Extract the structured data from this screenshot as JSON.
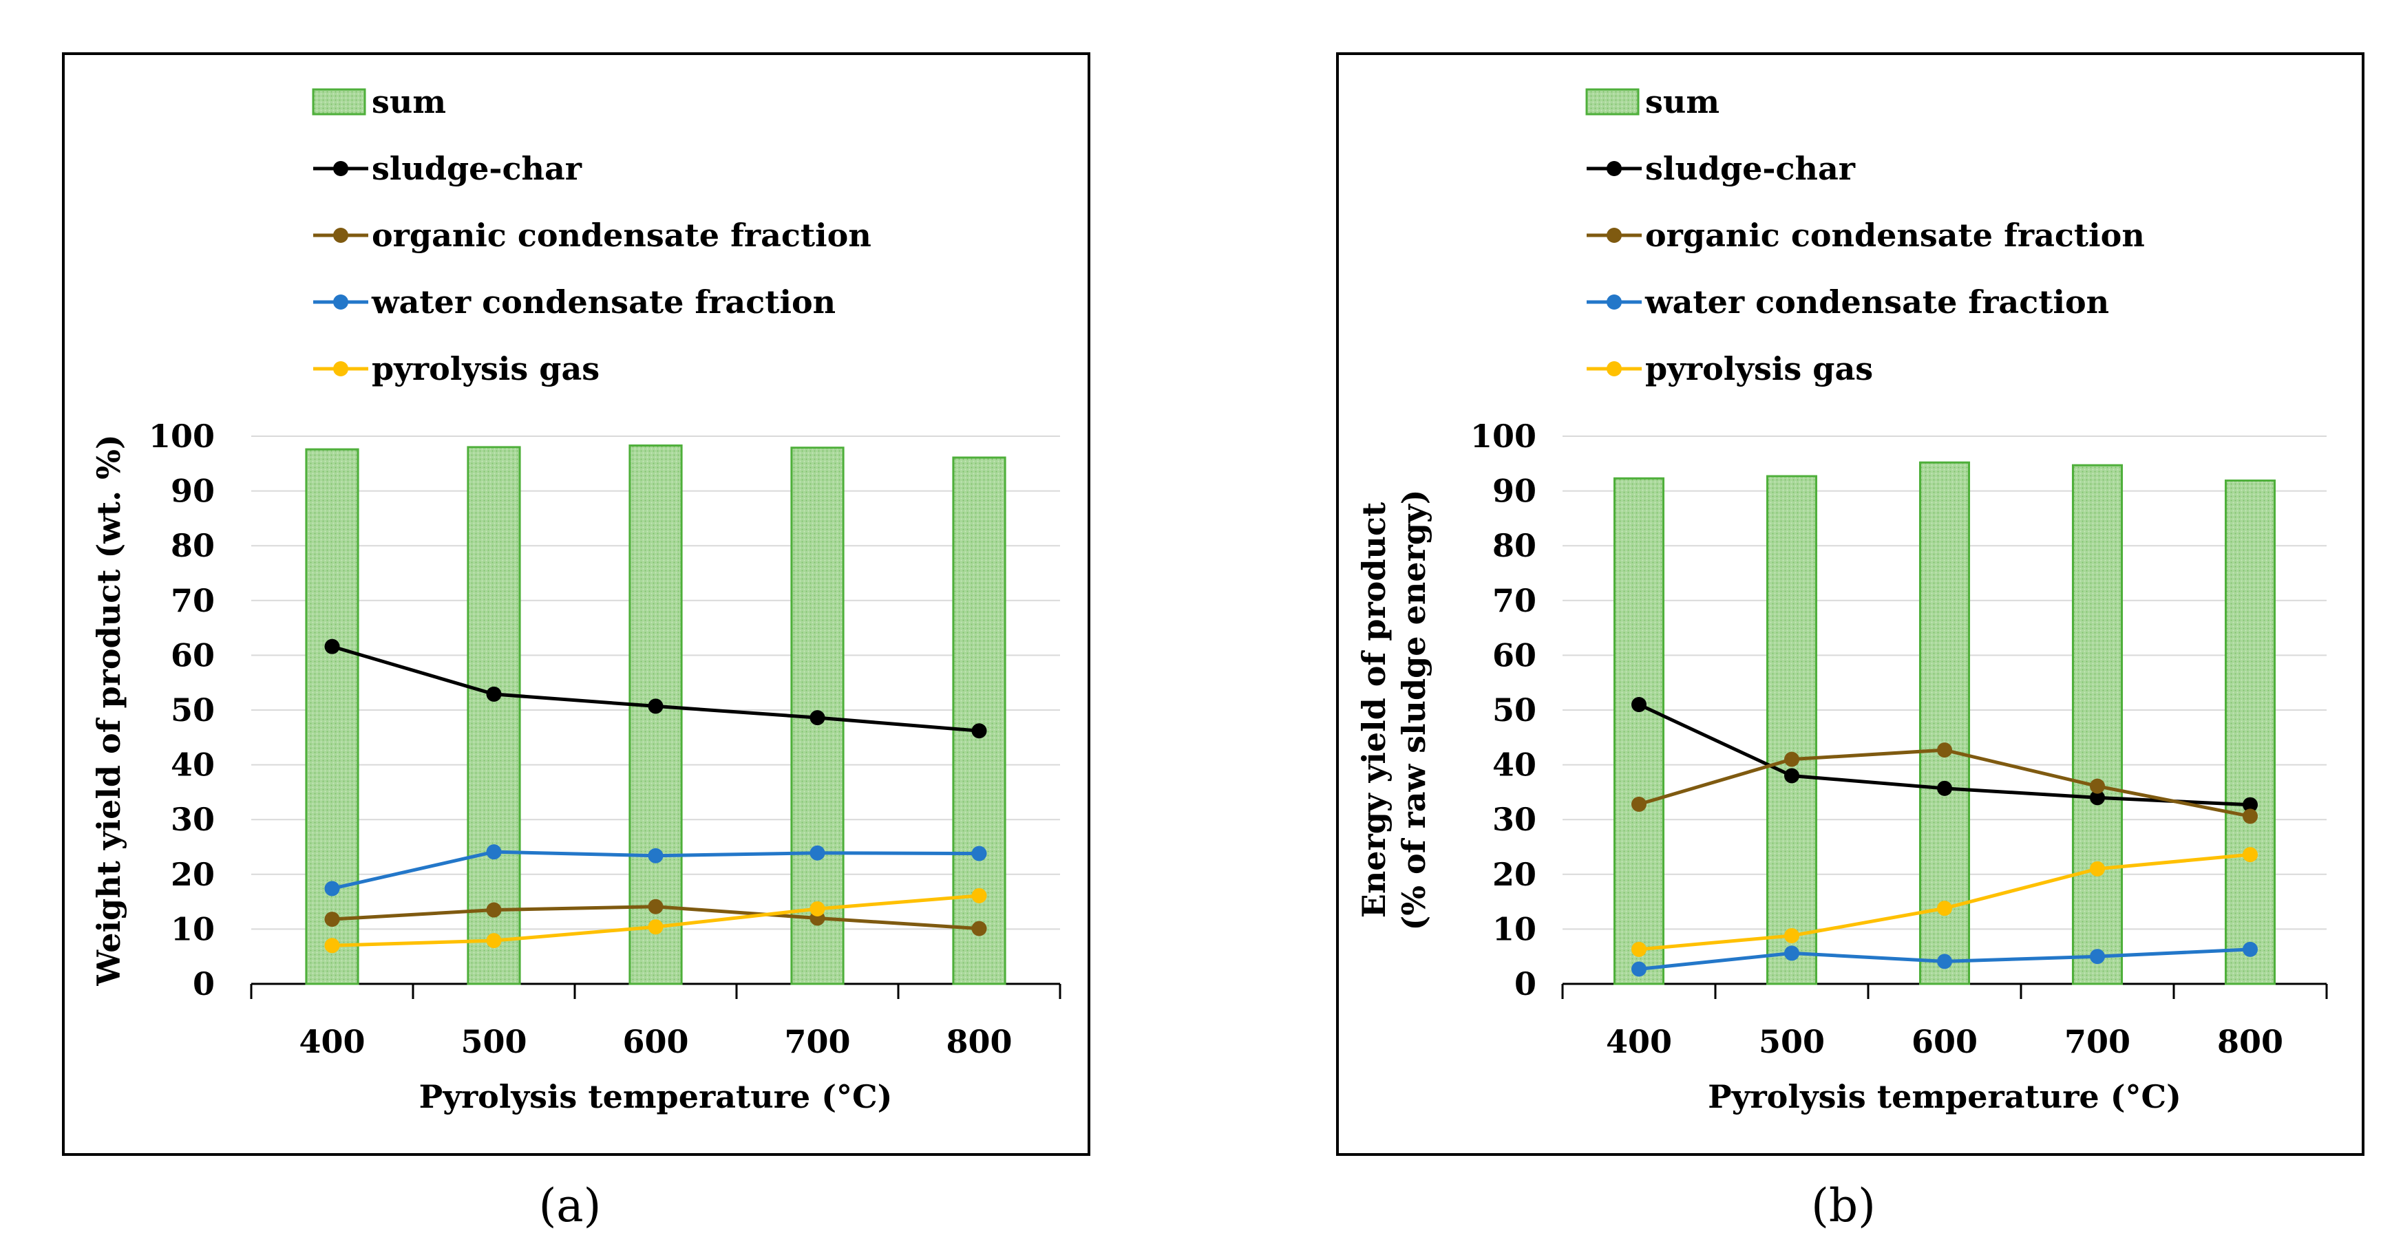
{
  "chart_data": [
    {
      "type": "bar+line",
      "panel_label": "a",
      "title": "",
      "xlabel": "Pyrolysis temperature (°C)",
      "ylabel": "Weight yield of product (wt. %)",
      "ylabel_lines": [
        "Weight yield of product (wt. %)"
      ],
      "ylim": [
        0,
        100
      ],
      "yticks": [
        0,
        10,
        20,
        30,
        40,
        50,
        60,
        70,
        80,
        90,
        100
      ],
      "categories": [
        "400",
        "500",
        "600",
        "700",
        "800"
      ],
      "grid": true,
      "legend_position": "top",
      "series": [
        {
          "name": "sum",
          "kind": "bar",
          "color": "#9ED08E",
          "edge": "#4EAF3A",
          "values": [
            97.6,
            98.0,
            98.3,
            97.9,
            96.1
          ]
        },
        {
          "name": "sludge-char",
          "kind": "line",
          "color": "#000000",
          "values": [
            61.6,
            52.9,
            50.7,
            48.6,
            46.2
          ]
        },
        {
          "name": "organic condensate fraction",
          "kind": "line",
          "color": "#7F5A10",
          "values": [
            11.8,
            13.5,
            14.1,
            12.0,
            10.1
          ]
        },
        {
          "name": "water condensate fraction",
          "kind": "line",
          "color": "#2377C9",
          "values": [
            17.4,
            24.1,
            23.4,
            23.9,
            23.8
          ]
        },
        {
          "name": "pyrolysis gas",
          "kind": "line",
          "color": "#FFC000",
          "values": [
            7.0,
            7.9,
            10.4,
            13.7,
            16.1
          ]
        }
      ]
    },
    {
      "type": "bar+line",
      "panel_label": "b",
      "title": "",
      "xlabel": "Pyrolysis temperature (°C)",
      "ylabel": "Energy yield of product (% of raw sludge energy)",
      "ylabel_lines": [
        "Energy yield of product",
        "(% of raw sludge energy)"
      ],
      "ylim": [
        0,
        100
      ],
      "yticks": [
        0,
        10,
        20,
        30,
        40,
        50,
        60,
        70,
        80,
        90,
        100
      ],
      "categories": [
        "400",
        "500",
        "600",
        "700",
        "800"
      ],
      "grid": true,
      "legend_position": "top",
      "series": [
        {
          "name": "sum",
          "kind": "bar",
          "color": "#9ED08E",
          "edge": "#4EAF3A",
          "values": [
            92.3,
            92.7,
            95.2,
            94.7,
            91.9
          ]
        },
        {
          "name": "sludge-char",
          "kind": "line",
          "color": "#000000",
          "values": [
            51.0,
            38.0,
            35.7,
            34.0,
            32.7
          ]
        },
        {
          "name": "organic condensate fraction",
          "kind": "line",
          "color": "#7F5A10",
          "values": [
            32.8,
            41.0,
            42.7,
            36.1,
            30.6
          ]
        },
        {
          "name": "water condensate fraction",
          "kind": "line",
          "color": "#2377C9",
          "values": [
            2.7,
            5.6,
            4.1,
            5.0,
            6.3
          ]
        },
        {
          "name": "pyrolysis gas",
          "kind": "line",
          "color": "#FFC000",
          "values": [
            6.3,
            8.8,
            13.8,
            21.0,
            23.6
          ]
        }
      ]
    }
  ],
  "captions": {
    "a": "(a)",
    "b": "(b)"
  }
}
